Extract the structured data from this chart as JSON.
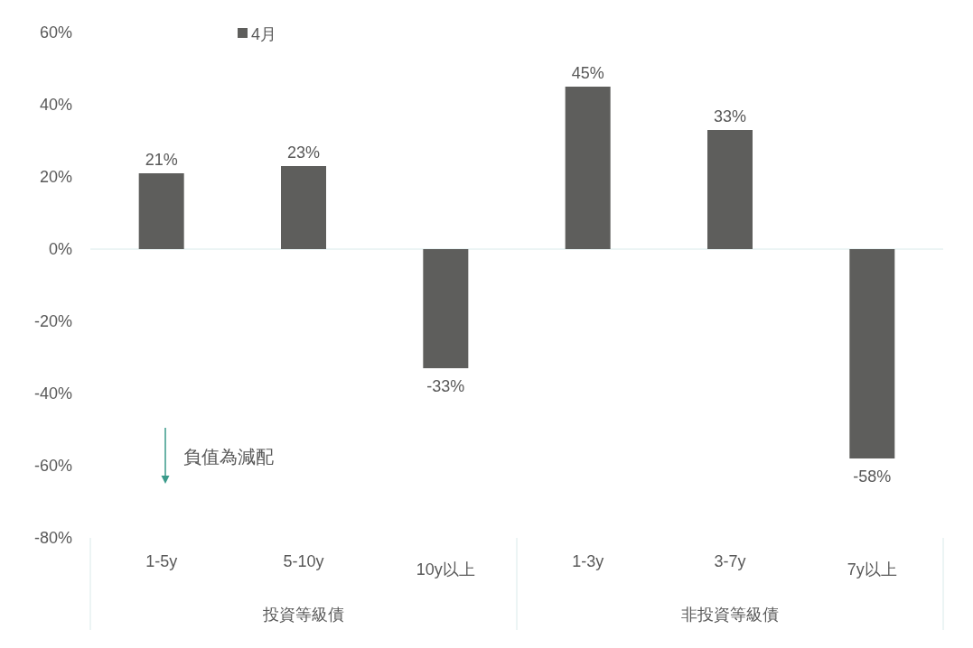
{
  "chart_data": {
    "type": "bar",
    "categories": [
      "1-5y",
      "5-10y",
      "10y以上",
      "1-3y",
      "3-7y",
      "7y以上"
    ],
    "series": [
      {
        "name": "4月",
        "color": "#5e5e5c",
        "values": [
          21,
          23,
          -33,
          45,
          33,
          -58
        ],
        "value_labels": [
          "21%",
          "23%",
          "-33%",
          "45%",
          "33%",
          "-58%"
        ]
      }
    ],
    "ylim": [
      -80,
      60
    ],
    "yticks": [
      {
        "value": 60,
        "label": "60%"
      },
      {
        "value": 40,
        "label": "40%"
      },
      {
        "value": 20,
        "label": "20%"
      },
      {
        "value": 0,
        "label": "0%"
      },
      {
        "value": -20,
        "label": "-20%"
      },
      {
        "value": -40,
        "label": "-40%"
      },
      {
        "value": -60,
        "label": "-60%"
      },
      {
        "value": -80,
        "label": "-80%"
      }
    ],
    "legend": "top",
    "annotations": [
      "投資等級債",
      "非投資等級債",
      "負值為減配"
    ]
  }
}
